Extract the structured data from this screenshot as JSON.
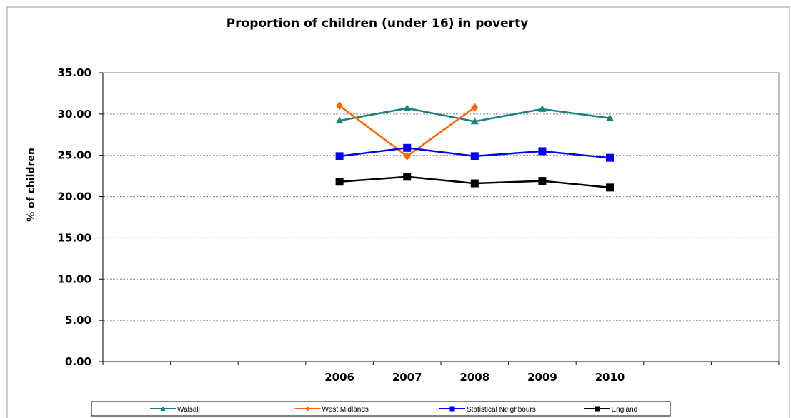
{
  "chart_data": {
    "type": "line",
    "title": "Proportion of children (under 16) in poverty",
    "xlabel": "",
    "ylabel": "% of children",
    "ylim": [
      0,
      35
    ],
    "yticks": [
      "0.00",
      "5.00",
      "10.00",
      "15.00",
      "20.00",
      "25.00",
      "30.00",
      "35.00"
    ],
    "categories": [
      "",
      "",
      "",
      "2006",
      "2007",
      "2008",
      "2009",
      "2010",
      "",
      ""
    ],
    "grid": true,
    "legend_position": "bottom",
    "series": [
      {
        "name": "Walsall",
        "color": "#1a8080",
        "marker": "triangle",
        "values": [
          null,
          null,
          null,
          29.2,
          30.7,
          29.1,
          30.6,
          29.5,
          null,
          null
        ]
      },
      {
        "name": "West Midlands",
        "color": "#ff6600",
        "marker": "diamond",
        "values": [
          null,
          null,
          null,
          31.0,
          24.9,
          30.8,
          null,
          null,
          null,
          null
        ]
      },
      {
        "name": "Statistical Neighbours",
        "color": "#0000ff",
        "marker": "square",
        "values": [
          null,
          null,
          null,
          24.9,
          25.9,
          24.9,
          25.5,
          24.7,
          null,
          null
        ]
      },
      {
        "name": "England",
        "color": "#000000",
        "marker": "square",
        "values": [
          null,
          null,
          null,
          21.8,
          22.4,
          21.6,
          21.9,
          21.1,
          null,
          null
        ]
      }
    ]
  }
}
